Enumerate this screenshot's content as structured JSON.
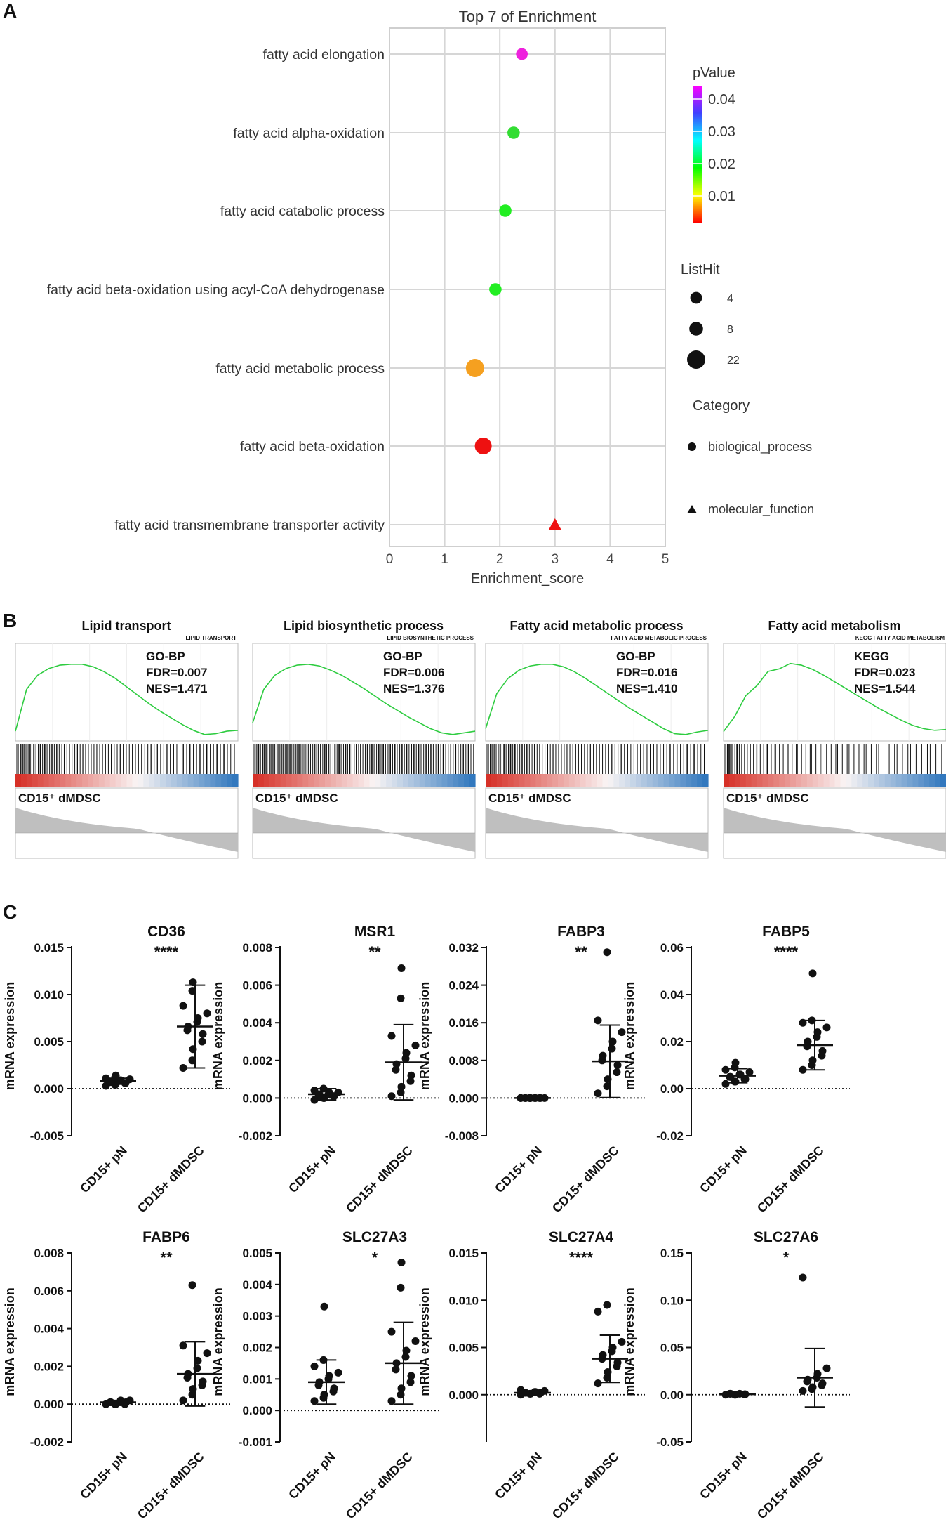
{
  "panels": {
    "a": "A",
    "b": "B",
    "c": "C"
  },
  "chart_data": [
    {
      "type": "scatter",
      "title": "Top 7 of  Enrichment",
      "xlabel": "Enrichment_score",
      "ylabel": "",
      "xlim": [
        0,
        5
      ],
      "xticks": [
        "0",
        "1",
        "2",
        "3",
        "4",
        "5"
      ],
      "grid": true,
      "categories": [
        "fatty acid elongation",
        "fatty acid alpha-oxidation",
        "fatty acid catabolic process",
        "fatty acid beta-oxidation using acyl-CoA dehydrogenase",
        "fatty acid metabolic process",
        "fatty acid beta-oxidation",
        "fatty acid transmembrane transporter activity"
      ],
      "points": [
        {
          "term": "fatty acid elongation",
          "x": 2.4,
          "pValue": 0.042,
          "listHit": 4,
          "category": "biological_process",
          "color": "#ee22dd"
        },
        {
          "term": "fatty acid alpha-oxidation",
          "x": 2.25,
          "pValue": 0.018,
          "listHit": 5,
          "category": "biological_process",
          "color": "#33dd33"
        },
        {
          "term": "fatty acid catabolic process",
          "x": 2.1,
          "pValue": 0.016,
          "listHit": 5,
          "category": "biological_process",
          "color": "#22ee22"
        },
        {
          "term": "fatty acid beta-oxidation using acyl-CoA dehydrogenase",
          "x": 1.92,
          "pValue": 0.016,
          "listHit": 5,
          "category": "biological_process",
          "color": "#22ee22"
        },
        {
          "term": "fatty acid metabolic process",
          "x": 1.55,
          "pValue": 0.005,
          "listHit": 22,
          "category": "biological_process",
          "color": "#f5a020"
        },
        {
          "term": "fatty acid beta-oxidation",
          "x": 1.7,
          "pValue": 0.001,
          "listHit": 17,
          "category": "biological_process",
          "color": "#ee1111"
        },
        {
          "term": "fatty acid transmembrane transporter activity",
          "x": 3.0,
          "pValue": 0.001,
          "listHit": 4,
          "category": "molecular_function",
          "color": "#ee1111"
        }
      ],
      "legend": {
        "pvalue_title": "pValue",
        "pvalue_ticks": [
          "0.04",
          "0.03",
          "0.02",
          "0.01"
        ],
        "pvalue_colors": [
          "#ff00ff",
          "#4040ff",
          "#00ffff",
          "#00ff00",
          "#ffff00",
          "#ff0000"
        ],
        "listhit_title": "ListHit",
        "listhit_sizes": [
          "4",
          "8",
          "22"
        ],
        "category_title": "Category",
        "category_items": [
          "biological_process",
          "molecular_function"
        ]
      }
    },
    {
      "type": "line",
      "description": "GSEA enrichment plots",
      "plots": [
        {
          "title": "Lipid transport",
          "subtitle": "LIPID TRANSPORT",
          "db": "GO-BP",
          "fdr": "FDR=0.007",
          "nes": "NES=1.471",
          "group": "CD15⁺ dMDSC",
          "es_curve": [
            0.05,
            0.55,
            0.72,
            0.8,
            0.84,
            0.85,
            0.85,
            0.82,
            0.76,
            0.68,
            0.58,
            0.48,
            0.38,
            0.29,
            0.21,
            0.13,
            0.06,
            0.01,
            0.02,
            0.05,
            0.06
          ]
        },
        {
          "title": "Lipid biosynthetic process",
          "subtitle": "LIPID BIOSYNTHETIC PROCESS",
          "db": "GO-BP",
          "fdr": "FDR=0.006",
          "nes": "NES=1.376",
          "group": "CD15⁺ dMDSC",
          "es_curve": [
            0.15,
            0.55,
            0.72,
            0.8,
            0.84,
            0.85,
            0.83,
            0.78,
            0.72,
            0.64,
            0.56,
            0.47,
            0.38,
            0.3,
            0.22,
            0.15,
            0.08,
            0.03,
            0.01,
            0.03,
            0.05
          ]
        },
        {
          "title": "Fatty acid metabolic process",
          "subtitle": "FATTY ACID METABOLIC PROCESS",
          "db": "GO-BP",
          "fdr": "FDR=0.016",
          "nes": "NES=1.410",
          "group": "CD15⁺ dMDSC",
          "es_curve": [
            0.08,
            0.5,
            0.68,
            0.78,
            0.83,
            0.85,
            0.85,
            0.82,
            0.76,
            0.68,
            0.59,
            0.5,
            0.41,
            0.32,
            0.24,
            0.16,
            0.08,
            0.02,
            0.01,
            0.04,
            0.06
          ]
        },
        {
          "title": "Fatty acid metabolism",
          "subtitle": "KEGG FATTY ACID METABOLISM",
          "db": "KEGG",
          "fdr": "FDR=0.023",
          "nes": "NES=1.544",
          "group": "CD15⁺ dMDSC",
          "es_curve": [
            0.02,
            0.25,
            0.45,
            0.62,
            0.74,
            0.82,
            0.86,
            0.84,
            0.79,
            0.72,
            0.64,
            0.56,
            0.48,
            0.4,
            0.32,
            0.25,
            0.18,
            0.12,
            0.08,
            0.06,
            0.07
          ]
        }
      ]
    },
    {
      "type": "scatter",
      "description": "mRNA expression dot plots (mean ± SD)",
      "ylabel": "mRNA expression",
      "categories": [
        "CD15+ pN",
        "CD15+ dMDSC"
      ],
      "plots": [
        {
          "title": "CD36",
          "sig": "****",
          "ylim": [
            -0.005,
            0.015
          ],
          "yticks": [
            "-0.005",
            "0.000",
            "0.005",
            "0.010",
            "0.015"
          ],
          "ytick_values": [
            -0.005,
            0,
            0.005,
            0.01,
            0.015
          ],
          "pN": [
            0.0003,
            0.0004,
            0.0005,
            0.0006,
            0.0006,
            0.0007,
            0.0007,
            0.0008,
            0.0009,
            0.001,
            0.0011,
            0.0012,
            0.0014
          ],
          "dMDSC": [
            0.0022,
            0.003,
            0.0042,
            0.005,
            0.0058,
            0.0062,
            0.0066,
            0.0071,
            0.0075,
            0.008,
            0.0088,
            0.0104,
            0.0113
          ],
          "pN_mean": 0.0008,
          "pN_sd": 0.0003,
          "dMDSC_mean": 0.0066,
          "dMDSC_sd": 0.0044
        },
        {
          "title": "MSR1",
          "sig": "**",
          "ylim": [
            -0.002,
            0.008
          ],
          "yticks": [
            "-0.002",
            "0.000",
            "0.002",
            "0.004",
            "0.006",
            "0.008"
          ],
          "ytick_values": [
            -0.002,
            0,
            0.002,
            0.004,
            0.006,
            0.008
          ],
          "pN": [
            -0.0001,
            0.0,
            0.0,
            0.0001,
            0.0001,
            0.0001,
            0.0002,
            0.0002,
            0.0003,
            0.0003,
            0.0004,
            0.0005
          ],
          "dMDSC": [
            0.0001,
            0.0003,
            0.0006,
            0.0009,
            0.0012,
            0.0015,
            0.0018,
            0.0021,
            0.0024,
            0.0028,
            0.0033,
            0.0053,
            0.0069
          ],
          "pN_mean": 0.0002,
          "pN_sd": 0.0003,
          "dMDSC_mean": 0.0019,
          "dMDSC_sd": 0.002
        },
        {
          "title": "FABP3",
          "sig": "**",
          "ylim": [
            -0.008,
            0.032
          ],
          "yticks": [
            "-0.008",
            "0.000",
            "0.008",
            "0.016",
            "0.024",
            "0.032"
          ],
          "ytick_values": [
            -0.008,
            0,
            0.008,
            0.016,
            0.024,
            0.032
          ],
          "pN": [
            0.0,
            0.0,
            0.0,
            0.0,
            0.0,
            0.0,
            0.0,
            0.0,
            0.0,
            0.0,
            0.0,
            0.0
          ],
          "dMDSC": [
            0.001,
            0.0025,
            0.004,
            0.0055,
            0.007,
            0.008,
            0.009,
            0.0105,
            0.012,
            0.014,
            0.0165,
            0.031
          ],
          "pN_mean": 0.0,
          "pN_sd": 0.0001,
          "dMDSC_mean": 0.0078,
          "dMDSC_sd": 0.0077
        },
        {
          "title": "FABP5",
          "sig": "****",
          "ylim": [
            -0.02,
            0.06
          ],
          "yticks": [
            "-0.02",
            "0.00",
            "0.02",
            "0.04",
            "0.06"
          ],
          "ytick_values": [
            -0.02,
            0,
            0.02,
            0.04,
            0.06
          ],
          "pN": [
            0.002,
            0.003,
            0.003,
            0.004,
            0.004,
            0.005,
            0.005,
            0.006,
            0.006,
            0.007,
            0.008,
            0.009,
            0.011
          ],
          "dMDSC": [
            0.008,
            0.01,
            0.012,
            0.014,
            0.016,
            0.018,
            0.02,
            0.022,
            0.024,
            0.026,
            0.028,
            0.029,
            0.049
          ],
          "pN_mean": 0.0055,
          "pN_sd": 0.003,
          "dMDSC_mean": 0.0185,
          "dMDSC_sd": 0.0105
        },
        {
          "title": "FABP6",
          "sig": "**",
          "ylim": [
            -0.002,
            0.008
          ],
          "yticks": [
            "-0.002",
            "0.000",
            "0.002",
            "0.004",
            "0.006",
            "0.008"
          ],
          "ytick_values": [
            -0.002,
            0,
            0.002,
            0.004,
            0.006,
            0.008
          ],
          "pN": [
            0.0,
            0.0,
            0.0,
            0.0,
            0.0001,
            0.0001,
            0.0001,
            0.0001,
            0.0002,
            0.0002
          ],
          "dMDSC": [
            0.0002,
            0.0005,
            0.0008,
            0.001,
            0.0012,
            0.0014,
            0.0016,
            0.0019,
            0.0023,
            0.0027,
            0.0031,
            0.0063
          ],
          "pN_mean": 0.0001,
          "pN_sd": 0.0001,
          "dMDSC_mean": 0.0016,
          "dMDSC_sd": 0.0017
        },
        {
          "title": "SLC27A3",
          "sig": "*",
          "ylim": [
            -0.001,
            0.005
          ],
          "yticks": [
            "-0.001",
            "0.000",
            "0.001",
            "0.002",
            "0.003",
            "0.004",
            "0.005"
          ],
          "ytick_values": [
            -0.001,
            0,
            0.001,
            0.002,
            0.003,
            0.004,
            0.005
          ],
          "pN": [
            0.0003,
            0.0004,
            0.0005,
            0.0006,
            0.0007,
            0.0008,
            0.0009,
            0.001,
            0.0011,
            0.0012,
            0.0014,
            0.0016,
            0.0033
          ],
          "dMDSC": [
            0.0003,
            0.0005,
            0.0007,
            0.0009,
            0.0011,
            0.0013,
            0.0015,
            0.0017,
            0.0019,
            0.0022,
            0.0025,
            0.0039,
            0.0047
          ],
          "pN_mean": 0.0009,
          "pN_sd": 0.0007,
          "dMDSC_mean": 0.0015,
          "dMDSC_sd": 0.0013
        },
        {
          "title": "SLC27A4",
          "sig": "****",
          "ylim": [
            -0.005,
            0.015
          ],
          "yticks": [
            "0.000",
            "0.005",
            "0.010",
            "0.015"
          ],
          "ytick_values": [
            0,
            0.005,
            0.01,
            0.015
          ],
          "pN": [
            0.0,
            0.0001,
            0.0001,
            0.0001,
            0.0002,
            0.0002,
            0.0002,
            0.0003,
            0.0003,
            0.0004,
            0.0005
          ],
          "dMDSC": [
            0.0012,
            0.0018,
            0.0024,
            0.003,
            0.0034,
            0.0038,
            0.0042,
            0.0046,
            0.005,
            0.0056,
            0.0088,
            0.0095
          ],
          "pN_mean": 0.0002,
          "pN_sd": 0.0002,
          "dMDSC_mean": 0.0038,
          "dMDSC_sd": 0.0025
        },
        {
          "title": "SLC27A6",
          "sig": "*",
          "ylim": [
            -0.05,
            0.15
          ],
          "yticks": [
            "-0.05",
            "0.00",
            "0.05",
            "0.10",
            "0.15"
          ],
          "ytick_values": [
            -0.05,
            0,
            0.05,
            0.1,
            0.15
          ],
          "pN": [
            0.0,
            0.0,
            0.0,
            0.0005,
            0.0005,
            0.001,
            0.001,
            0.001
          ],
          "dMDSC": [
            0.004,
            0.006,
            0.008,
            0.01,
            0.012,
            0.014,
            0.016,
            0.018,
            0.022,
            0.028,
            0.124
          ],
          "pN_mean": 0.0005,
          "pN_sd": 0.0005,
          "dMDSC_mean": 0.018,
          "dMDSC_sd": 0.031
        }
      ]
    }
  ]
}
